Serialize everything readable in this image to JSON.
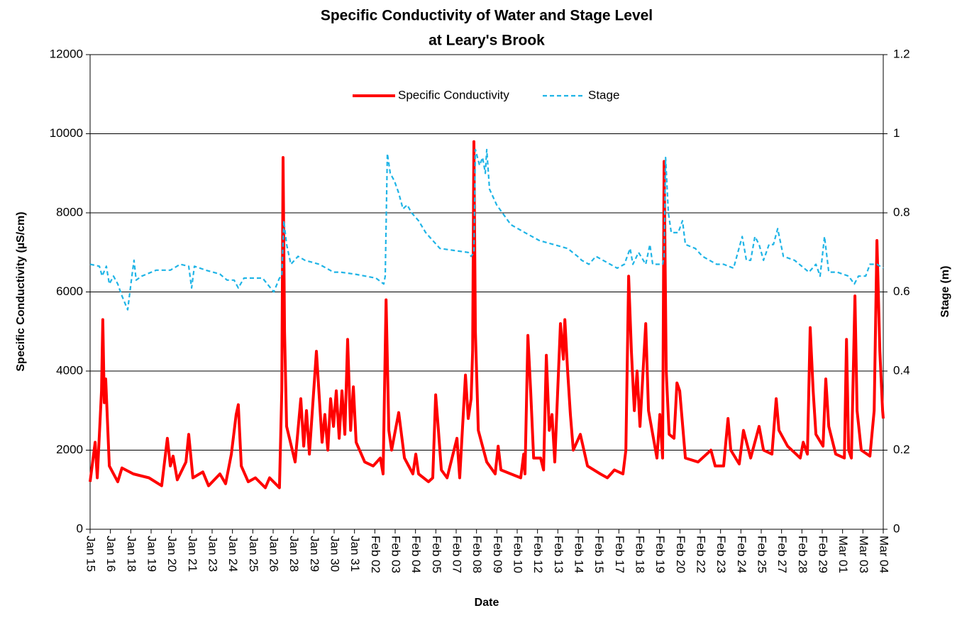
{
  "chart_data": {
    "type": "line",
    "title": [
      "Specific Conductivity of Water and Stage Level",
      "at Leary's Brook"
    ],
    "xlabel": "Date",
    "ylabel": "Specific Conductivity (µS/cm)",
    "y2label": "Stage (m)",
    "xlim": [
      0,
      48.75
    ],
    "ylim": [
      0,
      12000
    ],
    "y2lim": [
      0,
      1.2
    ],
    "yticks": [
      0,
      2000,
      4000,
      6000,
      8000,
      10000,
      12000
    ],
    "y2ticks": [
      0,
      0.2,
      0.4,
      0.6,
      0.8,
      1,
      1.2
    ],
    "xticks": [
      {
        "value": 0,
        "label": "Jan 15"
      },
      {
        "value": 1.25,
        "label": "Jan 16"
      },
      {
        "value": 2.5,
        "label": "Jan 18"
      },
      {
        "value": 3.75,
        "label": "Jan 19"
      },
      {
        "value": 5,
        "label": "Jan 20"
      },
      {
        "value": 6.25,
        "label": "Jan 21"
      },
      {
        "value": 7.5,
        "label": "Jan 23"
      },
      {
        "value": 8.75,
        "label": "Jan 24"
      },
      {
        "value": 10,
        "label": "Jan 25"
      },
      {
        "value": 11.25,
        "label": "Jan 26"
      },
      {
        "value": 12.5,
        "label": "Jan 28"
      },
      {
        "value": 13.75,
        "label": "Jan 29"
      },
      {
        "value": 15,
        "label": "Jan 30"
      },
      {
        "value": 16.25,
        "label": "Jan 31"
      },
      {
        "value": 17.5,
        "label": "Feb 02"
      },
      {
        "value": 18.75,
        "label": "Feb 03"
      },
      {
        "value": 20,
        "label": "Feb 04"
      },
      {
        "value": 21.25,
        "label": "Feb 05"
      },
      {
        "value": 22.5,
        "label": "Feb 07"
      },
      {
        "value": 23.75,
        "label": "Feb 08"
      },
      {
        "value": 25,
        "label": "Feb 09"
      },
      {
        "value": 26.25,
        "label": "Feb 10"
      },
      {
        "value": 27.5,
        "label": "Feb 12"
      },
      {
        "value": 28.75,
        "label": "Feb 13"
      },
      {
        "value": 30,
        "label": "Feb 14"
      },
      {
        "value": 31.25,
        "label": "Feb 15"
      },
      {
        "value": 32.5,
        "label": "Feb 17"
      },
      {
        "value": 33.75,
        "label": "Feb 18"
      },
      {
        "value": 35,
        "label": "Feb 19"
      },
      {
        "value": 36.25,
        "label": "Feb 20"
      },
      {
        "value": 37.5,
        "label": "Feb 22"
      },
      {
        "value": 38.75,
        "label": "Feb 23"
      },
      {
        "value": 40,
        "label": "Feb 24"
      },
      {
        "value": 41.25,
        "label": "Feb 25"
      },
      {
        "value": 42.5,
        "label": "Feb 27"
      },
      {
        "value": 43.75,
        "label": "Feb 28"
      },
      {
        "value": 45,
        "label": "Feb 29"
      },
      {
        "value": 46.25,
        "label": "Mar 01"
      },
      {
        "value": 47.5,
        "label": "Mar 03"
      },
      {
        "value": 48.75,
        "label": "Mar 04"
      }
    ],
    "grid": true,
    "series": [
      {
        "name": "Specific Conductivity",
        "color": "#ff0000",
        "dash": false,
        "axis": "y",
        "x": [
          0,
          0.31,
          0.44,
          0.7,
          0.78,
          0.87,
          0.96,
          1.18,
          1.7,
          1.96,
          2.66,
          3.62,
          4.4,
          4.75,
          4.93,
          5.1,
          5.36,
          5.89,
          6.06,
          6.32,
          6.93,
          7.28,
          7.98,
          8.33,
          8.68,
          8.98,
          9.11,
          9.29,
          9.72,
          10.16,
          10.77,
          11.03,
          11.64,
          11.78,
          11.86,
          11.95,
          12.08,
          12.6,
          12.95,
          13.13,
          13.3,
          13.48,
          13.91,
          14.26,
          14.43,
          14.61,
          14.78,
          14.96,
          15.13,
          15.31,
          15.48,
          15.66,
          15.83,
          16.01,
          16.18,
          16.35,
          16.88,
          17.4,
          17.84,
          18.01,
          18.19,
          18.36,
          18.53,
          18.97,
          19.32,
          19.84,
          20.02,
          20.19,
          20.8,
          21.06,
          21.24,
          21.41,
          21.59,
          21.94,
          22.55,
          22.72,
          23.07,
          23.24,
          23.42,
          23.51,
          23.59,
          23.68,
          23.86,
          24.38,
          24.9,
          25.08,
          25.25,
          25.86,
          26.47,
          26.65,
          26.73,
          26.91,
          27.08,
          27.26,
          27.69,
          27.87,
          28.04,
          28.22,
          28.39,
          28.56,
          28.91,
          29.09,
          29.18,
          29.35,
          29.52,
          29.7,
          30.13,
          30.57,
          31.36,
          31.79,
          32.23,
          32.75,
          32.93,
          33.1,
          33.27,
          33.45,
          33.62,
          33.8,
          34.15,
          34.32,
          34.84,
          35.02,
          35.19,
          35.28,
          35.41,
          35.59,
          35.89,
          36.07,
          36.24,
          36.59,
          37.37,
          38.16,
          38.42,
          38.94,
          39.21,
          39.38,
          39.9,
          40.16,
          40.6,
          41.12,
          41.39,
          41.91,
          42.17,
          42.34,
          42.87,
          43.65,
          43.83,
          44.09,
          44.26,
          44.44,
          44.61,
          45.05,
          45.22,
          45.4,
          45.83,
          46.36,
          46.49,
          46.62,
          46.79,
          47.01,
          47.14,
          47.4,
          47.93,
          48.19,
          48.36,
          48.54,
          48.71,
          48.75
        ],
        "values": [
          1200,
          2200,
          1300,
          3500,
          5300,
          3200,
          3800,
          1600,
          1200,
          1550,
          1400,
          1300,
          1100,
          2300,
          1600,
          1850,
          1250,
          1700,
          2400,
          1300,
          1450,
          1100,
          1400,
          1150,
          1900,
          2900,
          3150,
          1600,
          1200,
          1300,
          1050,
          1300,
          1050,
          3500,
          9400,
          5000,
          2600,
          1700,
          3300,
          2100,
          3000,
          1900,
          4500,
          2200,
          2900,
          2000,
          3300,
          2600,
          3500,
          2300,
          3500,
          2400,
          4800,
          2500,
          3600,
          2200,
          1700,
          1600,
          1800,
          1400,
          5800,
          2500,
          2000,
          2950,
          1800,
          1400,
          1900,
          1400,
          1200,
          1300,
          3400,
          2500,
          1500,
          1300,
          2300,
          1300,
          3900,
          2800,
          3300,
          4500,
          9800,
          5000,
          2500,
          1700,
          1400,
          2100,
          1500,
          1400,
          1300,
          1900,
          1400,
          4900,
          3500,
          1800,
          1800,
          1500,
          4400,
          2500,
          2900,
          1700,
          5200,
          4300,
          5300,
          4000,
          2900,
          2000,
          2400,
          1600,
          1400,
          1300,
          1500,
          1400,
          2000,
          6400,
          4500,
          3000,
          4000,
          2600,
          5200,
          3000,
          1800,
          2900,
          1800,
          9300,
          4000,
          2400,
          2300,
          3700,
          3500,
          1800,
          1700,
          2000,
          1600,
          1600,
          2800,
          2000,
          1650,
          2500,
          1800,
          2600,
          2000,
          1900,
          3300,
          2500,
          2100,
          1800,
          2200,
          1900,
          5100,
          3500,
          2400,
          2100,
          3800,
          2600,
          1900,
          1800,
          4800,
          2000,
          1800,
          5900,
          3000,
          2000,
          1850,
          3000,
          7300,
          4500,
          3000,
          2800
        ]
      },
      {
        "name": "Stage",
        "color": "#1fb4e6",
        "dash": true,
        "axis": "y2",
        "x": [
          0,
          0.57,
          0.74,
          1.0,
          1.18,
          1.44,
          1.7,
          1.96,
          2.31,
          2.57,
          2.7,
          2.83,
          3.18,
          4.06,
          4.93,
          5.54,
          6.06,
          6.24,
          6.41,
          7.11,
          7.98,
          8.42,
          8.85,
          9.11,
          9.46,
          10.6,
          11.29,
          11.64,
          11.78,
          11.91,
          12.08,
          12.34,
          12.78,
          13.21,
          14.09,
          14.96,
          15.39,
          16.27,
          17.57,
          18.05,
          18.14,
          18.27,
          18.45,
          18.71,
          18.97,
          19.23,
          19.49,
          19.76,
          20.19,
          20.63,
          21.06,
          21.5,
          22.37,
          23.24,
          23.42,
          23.59,
          23.68,
          23.94,
          24.12,
          24.29,
          24.38,
          24.55,
          24.99,
          25.86,
          26.73,
          27.61,
          28.48,
          29.35,
          29.96,
          30.22,
          30.66,
          31.09,
          31.53,
          32.4,
          32.84,
          33.19,
          33.36,
          33.71,
          34.15,
          34.41,
          34.58,
          35.19,
          35.28,
          35.37,
          35.54,
          35.72,
          36.15,
          36.41,
          36.59,
          37.2,
          37.64,
          38.07,
          38.51,
          38.94,
          39.55,
          40.08,
          40.34,
          40.6,
          40.86,
          41.12,
          41.39,
          41.73,
          42.0,
          42.26,
          42.61,
          43.3,
          44.18,
          44.61,
          44.87,
          45.14,
          45.4,
          45.92,
          46.62,
          46.97,
          47.23,
          47.67,
          47.93,
          48.36,
          48.75
        ],
        "values": [
          0.67,
          0.665,
          0.64,
          0.665,
          0.62,
          0.64,
          0.62,
          0.59,
          0.555,
          0.64,
          0.68,
          0.63,
          0.64,
          0.655,
          0.655,
          0.67,
          0.665,
          0.61,
          0.665,
          0.655,
          0.645,
          0.63,
          0.63,
          0.61,
          0.635,
          0.635,
          0.6,
          0.635,
          0.64,
          0.78,
          0.72,
          0.67,
          0.69,
          0.68,
          0.67,
          0.65,
          0.65,
          0.645,
          0.635,
          0.62,
          0.64,
          0.95,
          0.9,
          0.88,
          0.85,
          0.81,
          0.82,
          0.8,
          0.78,
          0.75,
          0.73,
          0.71,
          0.705,
          0.7,
          0.69,
          0.7,
          0.96,
          0.92,
          0.94,
          0.9,
          0.96,
          0.86,
          0.82,
          0.77,
          0.75,
          0.73,
          0.72,
          0.71,
          0.69,
          0.68,
          0.67,
          0.69,
          0.68,
          0.66,
          0.67,
          0.71,
          0.67,
          0.7,
          0.67,
          0.72,
          0.67,
          0.67,
          0.69,
          0.94,
          0.8,
          0.75,
          0.75,
          0.78,
          0.72,
          0.71,
          0.69,
          0.68,
          0.67,
          0.67,
          0.66,
          0.74,
          0.68,
          0.68,
          0.74,
          0.72,
          0.68,
          0.72,
          0.72,
          0.76,
          0.69,
          0.68,
          0.65,
          0.67,
          0.64,
          0.74,
          0.65,
          0.65,
          0.64,
          0.62,
          0.64,
          0.64,
          0.67,
          0.67,
          0.66
        ]
      }
    ]
  }
}
